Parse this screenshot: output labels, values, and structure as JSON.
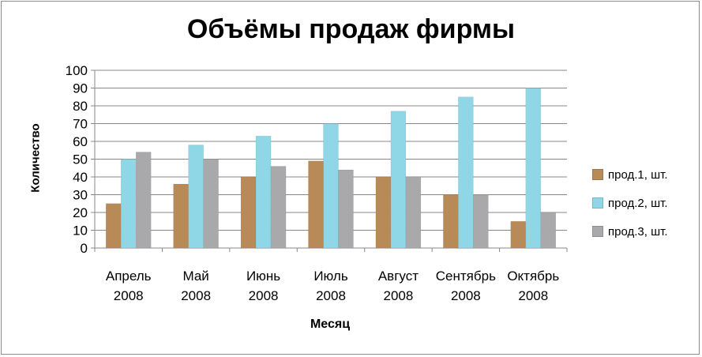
{
  "chart_data": {
    "type": "bar",
    "title": "Объёмы продаж фирмы",
    "xlabel": "Месяц",
    "ylabel": "Количество",
    "ylim": [
      0,
      100
    ],
    "yticks": [
      "0",
      "10",
      "20",
      "30",
      "40",
      "50",
      "60",
      "70",
      "80",
      "90",
      "100"
    ],
    "grid": true,
    "legend_position": "right",
    "categories": [
      [
        "Апрель",
        "2008"
      ],
      [
        "Май",
        "2008"
      ],
      [
        "Июнь",
        "2008"
      ],
      [
        "Июль",
        "2008"
      ],
      [
        "Август",
        "2008"
      ],
      [
        "Сентябрь",
        "2008"
      ],
      [
        "Октябрь",
        "2008"
      ]
    ],
    "series": [
      {
        "name": "прод.1, шт.",
        "color": "#b88a57",
        "values": [
          25,
          36,
          40,
          49,
          40,
          30,
          15
        ]
      },
      {
        "name": "прод.2, шт.",
        "color": "#8fd6e6",
        "values": [
          50,
          58,
          63,
          70,
          77,
          85,
          90
        ]
      },
      {
        "name": "прод.3, шт.",
        "color": "#a9a9ac",
        "values": [
          54,
          50,
          46,
          44,
          40,
          30,
          20
        ]
      }
    ]
  }
}
